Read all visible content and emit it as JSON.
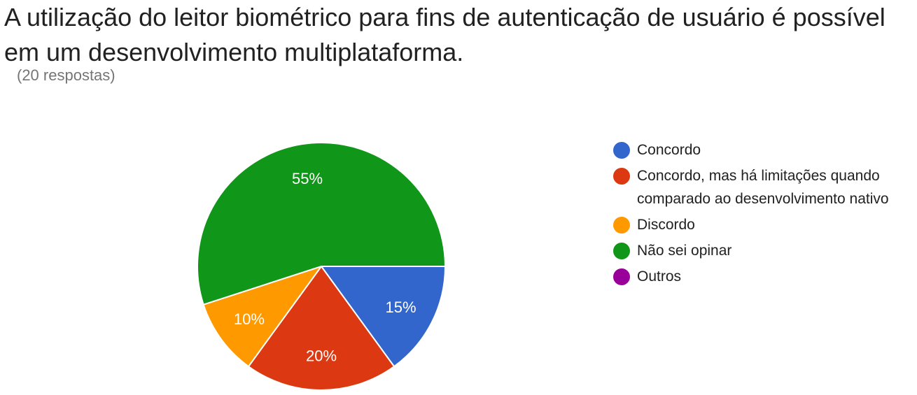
{
  "title": "A utilização do leitor biométrico para fins de autenticação de usuário é possível em um desenvolvimento multiplataforma.",
  "subtitle": "(20 respostas)",
  "chart_data": {
    "type": "pie",
    "title": "A utilização do leitor biométrico para fins de autenticação de usuário é possível em um desenvolvimento multiplataforma.",
    "subtitle": "(20 respostas)",
    "legend_position": "right",
    "slices": [
      {
        "label": "Concordo",
        "value": 15,
        "display": "15%",
        "color": "#3366cc"
      },
      {
        "label": "Concordo, mas há limitações quando comparado ao desenvolvimento nativo",
        "value": 20,
        "display": "20%",
        "color": "#dc3912"
      },
      {
        "label": "Discordo",
        "value": 10,
        "display": "10%",
        "color": "#ff9900"
      },
      {
        "label": "Não sei opinar",
        "value": 55,
        "display": "55%",
        "color": "#109618"
      },
      {
        "label": "Outros",
        "value": 0,
        "display": "",
        "color": "#990099"
      }
    ]
  }
}
